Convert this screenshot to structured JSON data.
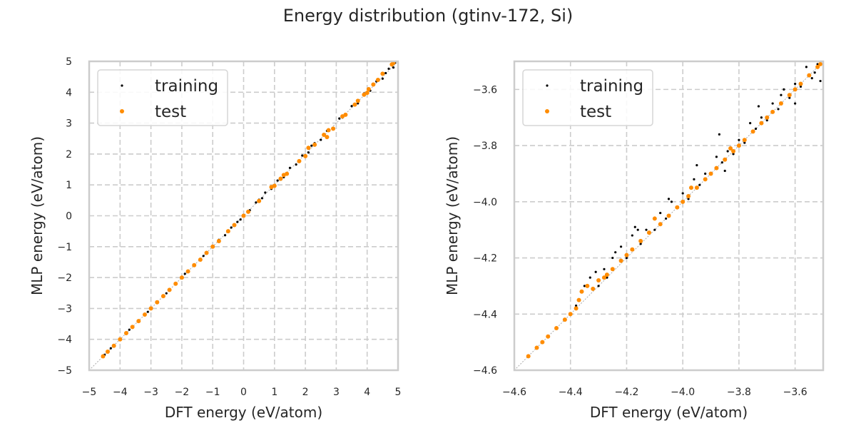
{
  "figure": {
    "suptitle": "Energy distribution (gtinv-172, Si)"
  },
  "chart_data": [
    {
      "type": "scatter",
      "title": "",
      "xlabel": "DFT energy (eV/atom)",
      "ylabel": "MLP energy (eV/atom)",
      "xlim": [
        -5,
        5
      ],
      "ylim": [
        -5,
        5
      ],
      "xticks": [
        -5,
        -4,
        -3,
        -2,
        -1,
        0,
        1,
        2,
        3,
        4,
        5
      ],
      "yticks": [
        -5,
        -4,
        -3,
        -2,
        -1,
        0,
        1,
        2,
        3,
        4,
        5
      ],
      "xtick_labels": [
        "−5",
        "−4",
        "−3",
        "−2",
        "−1",
        "0",
        "1",
        "2",
        "3",
        "4",
        "5"
      ],
      "ytick_labels": [
        "−5",
        "−4",
        "−3",
        "−2",
        "−1",
        "0",
        "1",
        "2",
        "3",
        "4",
        "5"
      ],
      "grid": true,
      "grid_style": "dashed",
      "legend": {
        "position": "top-left",
        "entries": [
          "training",
          "test"
        ]
      },
      "reference_line": {
        "from": [
          -5,
          -5
        ],
        "to": [
          5,
          5
        ],
        "style": "dotted",
        "color": "#aaaaaa"
      },
      "series": [
        {
          "name": "training",
          "color": "#000000",
          "marker": "small-dot",
          "points": [
            [
              -4.5,
              -4.5
            ],
            [
              -4.3,
              -4.29
            ],
            [
              -4.0,
              -4.01
            ],
            [
              -3.7,
              -3.69
            ],
            [
              -3.4,
              -3.4
            ],
            [
              -3.1,
              -3.11
            ],
            [
              -2.8,
              -2.79
            ],
            [
              -2.5,
              -2.51
            ],
            [
              -2.2,
              -2.2
            ],
            [
              -1.9,
              -1.88
            ],
            [
              -1.6,
              -1.62
            ],
            [
              -1.3,
              -1.3
            ],
            [
              -1.0,
              -0.98
            ],
            [
              -0.8,
              -0.78
            ],
            [
              -0.6,
              -0.63
            ],
            [
              -0.4,
              -0.38
            ],
            [
              -0.2,
              -0.2
            ],
            [
              0.0,
              0.03
            ],
            [
              0.2,
              0.18
            ],
            [
              0.4,
              0.43
            ],
            [
              0.6,
              0.57
            ],
            [
              0.7,
              0.75
            ],
            [
              0.9,
              0.87
            ],
            [
              1.1,
              1.14
            ],
            [
              1.3,
              1.25
            ],
            [
              1.5,
              1.55
            ],
            [
              1.7,
              1.66
            ],
            [
              1.9,
              1.95
            ],
            [
              2.1,
              2.05
            ],
            [
              2.3,
              2.35
            ],
            [
              2.5,
              2.46
            ],
            [
              2.7,
              2.75
            ],
            [
              2.9,
              2.85
            ],
            [
              3.1,
              3.15
            ],
            [
              3.3,
              3.25
            ],
            [
              3.5,
              3.55
            ],
            [
              3.7,
              3.64
            ],
            [
              3.9,
              3.96
            ],
            [
              4.1,
              4.05
            ],
            [
              4.3,
              4.35
            ],
            [
              4.5,
              4.44
            ],
            [
              4.7,
              4.76
            ],
            [
              4.85,
              4.8
            ],
            [
              4.9,
              4.95
            ],
            [
              4.6,
              4.62
            ],
            [
              3.2,
              3.18
            ],
            [
              2.2,
              2.27
            ],
            [
              1.2,
              1.17
            ],
            [
              0.5,
              0.52
            ],
            [
              -0.1,
              -0.12
            ]
          ]
        },
        {
          "name": "test",
          "color": "#ff8c00",
          "marker": "dot",
          "points": [
            [
              -4.55,
              -4.55
            ],
            [
              -4.4,
              -4.4
            ],
            [
              -4.2,
              -4.21
            ],
            [
              -4.0,
              -4.0
            ],
            [
              -3.8,
              -3.8
            ],
            [
              -3.6,
              -3.6
            ],
            [
              -3.4,
              -3.41
            ],
            [
              -3.2,
              -3.2
            ],
            [
              -3.0,
              -3.0
            ],
            [
              -2.8,
              -2.8
            ],
            [
              -2.6,
              -2.6
            ],
            [
              -2.4,
              -2.4
            ],
            [
              -2.2,
              -2.2
            ],
            [
              -2.0,
              -2.0
            ],
            [
              -1.8,
              -1.8
            ],
            [
              -1.6,
              -1.6
            ],
            [
              -1.4,
              -1.42
            ],
            [
              -1.2,
              -1.2
            ],
            [
              -1.0,
              -1.0
            ],
            [
              -0.8,
              -0.82
            ],
            [
              -0.5,
              -0.5
            ],
            [
              -0.3,
              -0.3
            ],
            [
              0.0,
              0.0
            ],
            [
              0.15,
              0.13
            ],
            [
              0.5,
              0.48
            ],
            [
              1.2,
              1.2
            ],
            [
              1.3,
              1.32
            ],
            [
              1.4,
              1.36
            ],
            [
              1.8,
              1.77
            ],
            [
              2.1,
              2.2
            ],
            [
              2.3,
              2.3
            ],
            [
              2.6,
              2.62
            ],
            [
              2.75,
              2.77
            ],
            [
              2.9,
              2.82
            ],
            [
              3.2,
              3.22
            ],
            [
              3.3,
              3.27
            ],
            [
              3.6,
              3.6
            ],
            [
              3.7,
              3.72
            ],
            [
              3.9,
              3.92
            ],
            [
              4.05,
              4.1
            ],
            [
              4.2,
              4.25
            ],
            [
              4.35,
              4.4
            ],
            [
              4.5,
              4.6
            ],
            [
              4.8,
              4.9
            ],
            [
              4.85,
              4.95
            ],
            [
              2.0,
              1.93
            ],
            [
              0.9,
              0.93
            ],
            [
              2.7,
              2.55
            ],
            [
              4.0,
              3.98
            ],
            [
              1.0,
              0.97
            ]
          ]
        }
      ]
    },
    {
      "type": "scatter",
      "title": "",
      "xlabel": "DFT energy (eV/atom)",
      "ylabel": "MLP energy (eV/atom)",
      "xlim": [
        -4.6,
        -3.5
      ],
      "ylim": [
        -4.6,
        -3.5
      ],
      "xticks": [
        -4.6,
        -4.4,
        -4.2,
        -4.0,
        -3.8,
        -3.6
      ],
      "yticks": [
        -4.6,
        -4.4,
        -4.2,
        -4.0,
        -3.8,
        -3.6
      ],
      "xtick_labels": [
        "−4.6",
        "−4.4",
        "−4.2",
        "−4.0",
        "−3.8",
        "−3.6"
      ],
      "ytick_labels": [
        "−4.6",
        "−4.4",
        "−4.2",
        "−4.0",
        "−3.8",
        "−3.6"
      ],
      "grid": true,
      "grid_style": "dashed",
      "legend": {
        "position": "top-left",
        "entries": [
          "training",
          "test"
        ]
      },
      "reference_line": {
        "from": [
          -4.6,
          -4.6
        ],
        "to": [
          -3.5,
          -3.5
        ],
        "style": "dotted",
        "color": "#aaaaaa"
      },
      "series": [
        {
          "name": "training",
          "color": "#000000",
          "marker": "small-dot",
          "points": [
            [
              -4.4,
              -4.4
            ],
            [
              -4.38,
              -4.37
            ],
            [
              -4.35,
              -4.3
            ],
            [
              -4.33,
              -4.27
            ],
            [
              -4.31,
              -4.25
            ],
            [
              -4.3,
              -4.3
            ],
            [
              -4.28,
              -4.24
            ],
            [
              -4.27,
              -4.27
            ],
            [
              -4.25,
              -4.2
            ],
            [
              -4.24,
              -4.18
            ],
            [
              -4.22,
              -4.16
            ],
            [
              -4.2,
              -4.2
            ],
            [
              -4.18,
              -4.12
            ],
            [
              -4.16,
              -4.1
            ],
            [
              -4.15,
              -4.15
            ],
            [
              -4.13,
              -4.1
            ],
            [
              -4.1,
              -4.1
            ],
            [
              -4.08,
              -4.04
            ],
            [
              -4.06,
              -4.06
            ],
            [
              -4.04,
              -4.0
            ],
            [
              -4.02,
              -4.02
            ],
            [
              -4.0,
              -3.97
            ],
            [
              -3.98,
              -3.99
            ],
            [
              -3.96,
              -3.92
            ],
            [
              -3.94,
              -3.94
            ],
            [
              -3.92,
              -3.9
            ],
            [
              -3.9,
              -3.9
            ],
            [
              -3.88,
              -3.84
            ],
            [
              -3.86,
              -3.86
            ],
            [
              -3.84,
              -3.82
            ],
            [
              -3.82,
              -3.83
            ],
            [
              -3.8,
              -3.78
            ],
            [
              -3.78,
              -3.79
            ],
            [
              -3.76,
              -3.72
            ],
            [
              -3.74,
              -3.74
            ],
            [
              -3.72,
              -3.7
            ],
            [
              -3.7,
              -3.71
            ],
            [
              -3.68,
              -3.65
            ],
            [
              -3.66,
              -3.67
            ],
            [
              -3.64,
              -3.6
            ],
            [
              -3.62,
              -3.63
            ],
            [
              -3.6,
              -3.58
            ],
            [
              -3.58,
              -3.59
            ],
            [
              -3.56,
              -3.52
            ],
            [
              -3.54,
              -3.56
            ],
            [
              -3.52,
              -3.51
            ],
            [
              -3.51,
              -3.57
            ],
            [
              -3.53,
              -3.54
            ],
            [
              -3.87,
              -3.76
            ],
            [
              -3.95,
              -3.87
            ],
            [
              -4.05,
              -3.99
            ],
            [
              -4.17,
              -4.09
            ],
            [
              -3.73,
              -3.66
            ],
            [
              -3.65,
              -3.62
            ],
            [
              -3.85,
              -3.89
            ],
            [
              -3.6,
              -3.65
            ]
          ]
        },
        {
          "name": "test",
          "color": "#ff8c00",
          "marker": "dot",
          "points": [
            [
              -4.55,
              -4.55
            ],
            [
              -4.52,
              -4.52
            ],
            [
              -4.5,
              -4.5
            ],
            [
              -4.48,
              -4.48
            ],
            [
              -4.45,
              -4.45
            ],
            [
              -4.42,
              -4.42
            ],
            [
              -4.4,
              -4.4
            ],
            [
              -4.38,
              -4.38
            ],
            [
              -4.37,
              -4.35
            ],
            [
              -4.36,
              -4.32
            ],
            [
              -4.34,
              -4.3
            ],
            [
              -4.32,
              -4.31
            ],
            [
              -4.3,
              -4.28
            ],
            [
              -4.28,
              -4.27
            ],
            [
              -4.25,
              -4.24
            ],
            [
              -4.22,
              -4.21
            ],
            [
              -4.2,
              -4.19
            ],
            [
              -4.18,
              -4.17
            ],
            [
              -4.15,
              -4.14
            ],
            [
              -4.12,
              -4.11
            ],
            [
              -4.1,
              -4.06
            ],
            [
              -4.08,
              -4.08
            ],
            [
              -4.05,
              -4.05
            ],
            [
              -4.02,
              -4.02
            ],
            [
              -4.0,
              -4.0
            ],
            [
              -3.98,
              -3.98
            ],
            [
              -3.95,
              -3.95
            ],
            [
              -3.92,
              -3.92
            ],
            [
              -3.9,
              -3.9
            ],
            [
              -3.88,
              -3.88
            ],
            [
              -3.85,
              -3.85
            ],
            [
              -3.82,
              -3.82
            ],
            [
              -3.8,
              -3.8
            ],
            [
              -3.78,
              -3.78
            ],
            [
              -3.75,
              -3.75
            ],
            [
              -3.72,
              -3.72
            ],
            [
              -3.7,
              -3.7
            ],
            [
              -3.68,
              -3.68
            ],
            [
              -3.65,
              -3.65
            ],
            [
              -3.62,
              -3.62
            ],
            [
              -3.6,
              -3.6
            ],
            [
              -3.58,
              -3.58
            ],
            [
              -3.55,
              -3.55
            ],
            [
              -3.52,
              -3.52
            ],
            [
              -3.51,
              -3.51
            ],
            [
              -3.97,
              -3.95
            ],
            [
              -3.83,
              -3.81
            ],
            [
              -4.27,
              -4.26
            ]
          ]
        }
      ]
    }
  ]
}
